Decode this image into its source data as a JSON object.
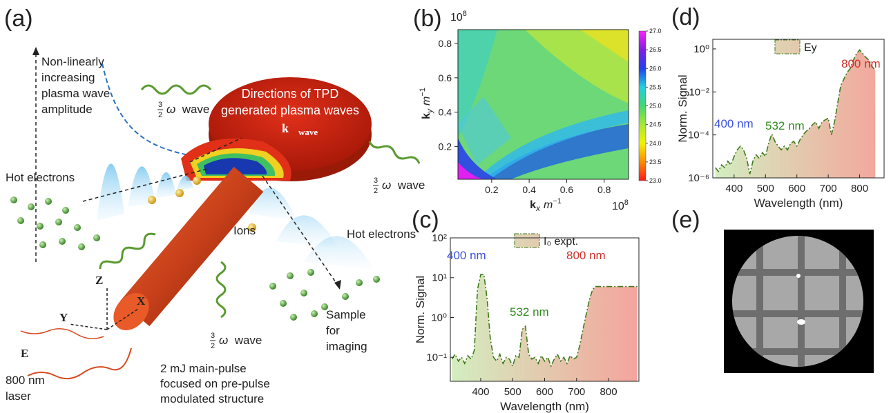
{
  "figure": {
    "panel_labels": [
      "(a)",
      "(b)",
      "(c)",
      "(d)",
      "(e)"
    ],
    "diagram": {
      "amplitude_label": [
        "Non-linearly",
        "increasing",
        "plasma wave",
        "amplitude"
      ],
      "wave_label": {
        "num": "3",
        "den": "2",
        "symbol": "ω",
        "word": "wave"
      },
      "tpd_label": [
        "Directions of TPD",
        "generated plasma waves"
      ],
      "k_wave": {
        "k": "k⃗",
        "sub": "wave"
      },
      "hot_electrons": "Hot electrons",
      "ions": "Ions",
      "sample_label": [
        "Sample",
        "for",
        "imaging"
      ],
      "axes": {
        "z": "Z⃗",
        "x": "X⃗",
        "y": "Y⃗",
        "e": "E⃗"
      },
      "laser_label": [
        "800 nm",
        "laser"
      ],
      "pulse_label": [
        "2 mJ main-pulse",
        "focused on pre-pulse",
        "modulated structure"
      ]
    }
  },
  "chart_data": [
    {
      "type": "heatmap",
      "xlabel": {
        "k": "k",
        "sub": "x",
        "unit": "m",
        "sup": "−1"
      },
      "ylabel": {
        "k": "k",
        "sub": "y",
        "unit": "m",
        "sup": "−1"
      },
      "x_multiplier": {
        "base": "10",
        "exp": "8"
      },
      "y_multiplier": {
        "base": "10",
        "exp": "8"
      },
      "xlim": [
        0.02,
        0.93
      ],
      "ylim": [
        0.01,
        0.88
      ],
      "xticks": [
        0.2,
        0.4,
        0.6,
        0.8
      ],
      "yticks": [
        0.2,
        0.4,
        0.6,
        0.8
      ],
      "clim": [
        23,
        27
      ],
      "cticks": [
        {
          "value": 23,
          "label": "23.0"
        },
        {
          "value": 23.5,
          "label": "23.5"
        },
        {
          "value": 24,
          "label": "24.0"
        },
        {
          "value": 24.5,
          "label": "24.5"
        },
        {
          "value": 25,
          "label": "25.0"
        },
        {
          "value": 25.5,
          "label": "25.5"
        },
        {
          "value": 26,
          "label": "26.0"
        },
        {
          "value": 26.5,
          "label": "26.5"
        },
        {
          "value": 27,
          "label": "27.0"
        }
      ],
      "colormap": [
        "#ff1a1a",
        "#ff8a00",
        "#f2f200",
        "#a8e830",
        "#40d870",
        "#20d0e0",
        "#2040f0",
        "#8020e0",
        "#ff20ff"
      ]
    },
    {
      "type": "line",
      "log_y": true,
      "xlabel": "Wavelength (nm)",
      "ylabel": "Norm. Signal",
      "xlim": [
        305,
        895
      ],
      "ylim": [
        0.025,
        100
      ],
      "xticks": [
        400,
        500,
        600,
        700,
        800
      ],
      "yticks": [
        {
          "value": 0.1,
          "label": "10⁻¹"
        },
        {
          "value": 1,
          "label": "10⁰"
        },
        {
          "value": 10,
          "label": "10¹"
        },
        {
          "value": 100,
          "label": "10²"
        }
      ],
      "x": [
        310,
        320,
        330,
        340,
        350,
        360,
        370,
        380,
        390,
        400,
        410,
        420,
        430,
        440,
        450,
        460,
        470,
        480,
        490,
        500,
        510,
        520,
        530,
        540,
        550,
        560,
        570,
        580,
        590,
        600,
        610,
        620,
        630,
        640,
        650,
        660,
        670,
        680,
        690,
        700,
        710,
        720,
        730,
        740,
        750,
        760,
        770,
        780,
        790,
        800,
        810,
        820,
        830,
        840,
        850,
        860,
        870,
        880,
        890
      ],
      "series": [
        {
          "name": "I₀ expt.",
          "color": "#3d7a1c",
          "fill_colors": [
            "#d3eec0",
            "#f4a49c"
          ],
          "values": [
            0.09,
            0.12,
            0.08,
            0.1,
            0.07,
            0.11,
            0.09,
            0.15,
            5,
            12,
            12,
            3,
            0.3,
            0.1,
            0.08,
            0.12,
            0.07,
            0.1,
            0.09,
            0.06,
            0.11,
            0.1,
            0.5,
            0.6,
            0.12,
            0.09,
            0.1,
            0.07,
            0.11,
            0.08,
            0.1,
            0.06,
            0.09,
            0.12,
            0.08,
            0.1,
            0.07,
            0.11,
            0.09,
            0.1,
            0.2,
            0.5,
            1.2,
            2.8,
            5,
            6,
            6,
            6,
            6,
            6,
            6,
            6,
            6,
            6,
            6,
            6,
            6,
            6,
            6
          ]
        }
      ],
      "annotations": [
        {
          "text": "400 nm",
          "color": "#3a4fe0"
        },
        {
          "text": "532 nm",
          "color": "#2f8a1e"
        },
        {
          "text": "800 nm",
          "color": "#d0302a"
        }
      ]
    },
    {
      "type": "line",
      "log_y": true,
      "xlabel": "Wavelength (nm)",
      "ylabel": "Norm. Signal",
      "xlim": [
        332,
        878
      ],
      "ylim": [
        1e-06,
        2.8
      ],
      "xticks": [
        400,
        500,
        600,
        700,
        800
      ],
      "yticks": [
        {
          "value": 1e-06,
          "label": "10⁻⁶"
        },
        {
          "value": 0.0001,
          "label": "10⁻⁴"
        },
        {
          "value": 0.01,
          "label": "10⁻²"
        },
        {
          "value": 1,
          "label": "10⁰"
        }
      ],
      "x": [
        340,
        350,
        360,
        370,
        380,
        390,
        400,
        410,
        420,
        430,
        440,
        450,
        460,
        470,
        480,
        490,
        500,
        510,
        520,
        530,
        540,
        550,
        560,
        570,
        580,
        590,
        600,
        610,
        620,
        630,
        640,
        650,
        660,
        670,
        680,
        690,
        700,
        710,
        720,
        730,
        740,
        750,
        760,
        770,
        780,
        790,
        800,
        810,
        820,
        830,
        840,
        850
      ],
      "series": [
        {
          "name": "Ey",
          "color": "#3d7a1c",
          "fill_colors": [
            "#d3eec0",
            "#f4a49c"
          ],
          "values": [
            3e-06,
            2e-06,
            4e-06,
            3e-06,
            6e-06,
            4e-06,
            1e-05,
            2e-05,
            3e-05,
            2e-05,
            8e-06,
            1.5e-06,
            6e-06,
            1.2e-05,
            8e-06,
            1.5e-05,
            1e-05,
            4e-05,
            0.00011,
            5e-05,
            3e-05,
            2e-05,
            3e-05,
            2e-05,
            4e-05,
            5e-05,
            3e-05,
            6e-05,
            0.0001,
            0.00015,
            0.0002,
            0.0003,
            0.0004,
            0.0002,
            0.0004,
            0.0005,
            0.0006,
            0.0001,
            0.0004,
            0.003,
            0.02,
            0.04,
            0.08,
            0.12,
            0.3,
            0.6,
            0.9,
            0.6,
            0.4,
            0.3,
            0.15,
            0.1
          ]
        }
      ],
      "annotations": [
        {
          "text": "400 nm",
          "color": "#3a4fe0"
        },
        {
          "text": "532 nm",
          "color": "#2f8a1e"
        },
        {
          "text": "800 nm",
          "color": "#d0302a"
        }
      ]
    }
  ]
}
